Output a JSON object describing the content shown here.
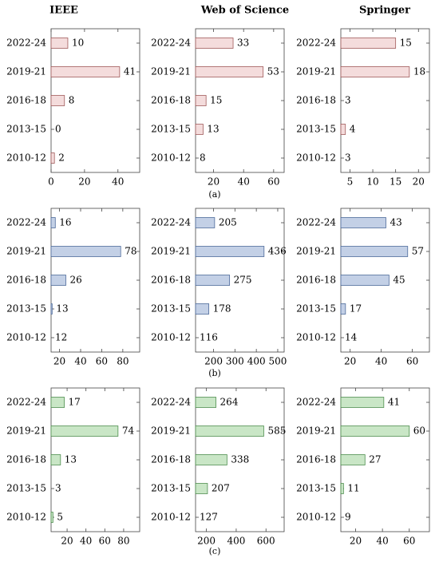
{
  "column_titles": [
    "IEEE",
    "Web of Science",
    "Springer"
  ],
  "row_captions": [
    "(a)",
    "(b)",
    "(c)"
  ],
  "colors": {
    "a": {
      "fill": "#f4dcdc",
      "stroke": "#a05a5a"
    },
    "b": {
      "fill": "#c3d0e6",
      "stroke": "#4d6a9a"
    },
    "c": {
      "fill": "#c9e6c6",
      "stroke": "#4f8f4f"
    }
  },
  "chart_data": [
    {
      "type": "bar",
      "orientation": "horizontal",
      "row": "a",
      "column": "IEEE",
      "categories": [
        "2022-24",
        "2019-21",
        "2016-18",
        "2013-15",
        "2010-12"
      ],
      "values": [
        10,
        41,
        8,
        0,
        2
      ],
      "xlim": [
        0,
        53
      ],
      "xticks": [
        0,
        20,
        40
      ]
    },
    {
      "type": "bar",
      "orientation": "horizontal",
      "row": "a",
      "column": "Web of Science",
      "categories": [
        "2022-24",
        "2019-21",
        "2016-18",
        "2013-15",
        "2010-12"
      ],
      "values": [
        33,
        53,
        15,
        13,
        8
      ],
      "xlim": [
        8,
        67
      ],
      "xticks": [
        20,
        40,
        60
      ]
    },
    {
      "type": "bar",
      "orientation": "horizontal",
      "row": "a",
      "column": "Springer",
      "categories": [
        "2022-24",
        "2019-21",
        "2016-18",
        "2013-15",
        "2010-12"
      ],
      "values": [
        15,
        18,
        3,
        4,
        3
      ],
      "xlim": [
        3,
        22.4
      ],
      "xticks": [
        5,
        10,
        15,
        20
      ]
    },
    {
      "type": "bar",
      "orientation": "horizontal",
      "row": "b",
      "column": "IEEE",
      "categories": [
        "2022-24",
        "2019-21",
        "2016-18",
        "2013-15",
        "2010-12"
      ],
      "values": [
        16,
        78,
        26,
        13,
        12
      ],
      "xlim": [
        12,
        96
      ],
      "xticks": [
        20,
        40,
        60,
        80
      ]
    },
    {
      "type": "bar",
      "orientation": "horizontal",
      "row": "b",
      "column": "Web of Science",
      "categories": [
        "2022-24",
        "2019-21",
        "2016-18",
        "2013-15",
        "2010-12"
      ],
      "values": [
        205,
        436,
        275,
        178,
        116
      ],
      "xlim": [
        116,
        530
      ],
      "xticks": [
        200,
        300,
        400,
        500
      ]
    },
    {
      "type": "bar",
      "orientation": "horizontal",
      "row": "b",
      "column": "Springer",
      "categories": [
        "2022-24",
        "2019-21",
        "2016-18",
        "2013-15",
        "2010-12"
      ],
      "values": [
        43,
        57,
        45,
        17,
        14
      ],
      "xlim": [
        14,
        71
      ],
      "xticks": [
        20,
        40,
        60
      ]
    },
    {
      "type": "bar",
      "orientation": "horizontal",
      "row": "c",
      "column": "IEEE",
      "categories": [
        "2022-24",
        "2019-21",
        "2016-18",
        "2013-15",
        "2010-12"
      ],
      "values": [
        17,
        74,
        13,
        3,
        5
      ],
      "xlim": [
        3,
        97
      ],
      "xticks": [
        20,
        40,
        60,
        80
      ]
    },
    {
      "type": "bar",
      "orientation": "horizontal",
      "row": "c",
      "column": "Web of Science",
      "categories": [
        "2022-24",
        "2019-21",
        "2016-18",
        "2013-15",
        "2010-12"
      ],
      "values": [
        264,
        585,
        338,
        207,
        127
      ],
      "xlim": [
        127,
        722
      ],
      "xticks": [
        200,
        400,
        600
      ]
    },
    {
      "type": "bar",
      "orientation": "horizontal",
      "row": "c",
      "column": "Springer",
      "categories": [
        "2022-24",
        "2019-21",
        "2016-18",
        "2013-15",
        "2010-12"
      ],
      "values": [
        41,
        60,
        27,
        11,
        9
      ],
      "xlim": [
        9,
        75
      ],
      "xticks": [
        20,
        40,
        60
      ]
    }
  ]
}
